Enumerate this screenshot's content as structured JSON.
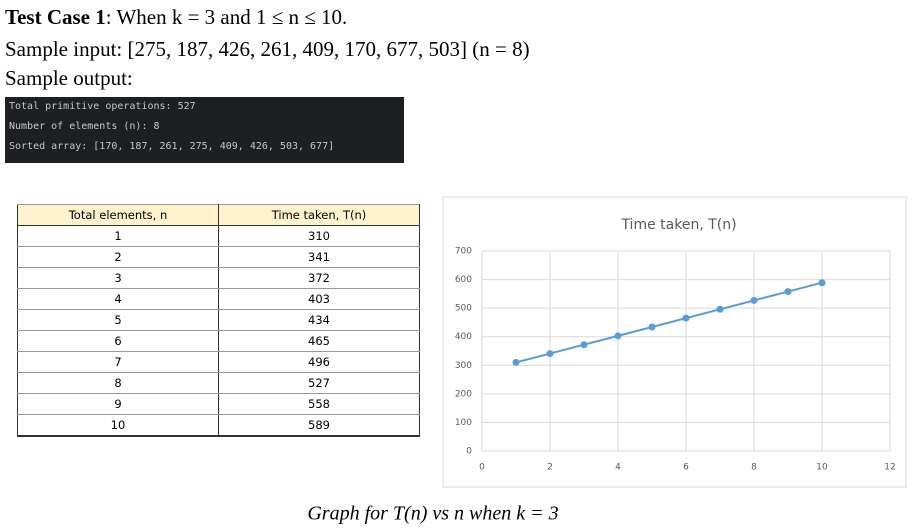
{
  "header": {
    "label": "Test Case 1",
    "condition": ": When k = 3 and 1 ≤ n ≤ 10.",
    "input": "Sample input: [275, 187, 426, 261, 409, 170, 677, 503] (n = 8)",
    "output": "Sample output:"
  },
  "terminal": {
    "lines": [
      "Total primitive operations: 527",
      "Number of elements (n): 8",
      "Sorted array: [170, 187, 261, 275, 409, 426, 503, 677]"
    ]
  },
  "table": {
    "headers": [
      "Total elements, n",
      "Time taken, T(n)"
    ],
    "rows": [
      [
        1,
        310
      ],
      [
        2,
        341
      ],
      [
        3,
        372
      ],
      [
        4,
        403
      ],
      [
        5,
        434
      ],
      [
        6,
        465
      ],
      [
        7,
        496
      ],
      [
        8,
        527
      ],
      [
        9,
        558
      ],
      [
        10,
        589
      ]
    ]
  },
  "chart_data": {
    "type": "line",
    "title": "Time taken, T(n)",
    "x": [
      1,
      2,
      3,
      4,
      5,
      6,
      7,
      8,
      9,
      10
    ],
    "series": [
      {
        "name": "Time taken, T(n)",
        "color": "#5b9bd5",
        "values": [
          310,
          341,
          372,
          403,
          434,
          465,
          496,
          527,
          558,
          589
        ]
      }
    ],
    "xlim": [
      0,
      12
    ],
    "xticks": [
      0,
      2,
      4,
      6,
      8,
      10,
      12
    ],
    "ylim": [
      0,
      700
    ],
    "yticks": [
      0,
      100,
      200,
      300,
      400,
      500,
      600,
      700
    ],
    "grid": true
  },
  "caption": "Graph for T(n) vs n when k = 3"
}
